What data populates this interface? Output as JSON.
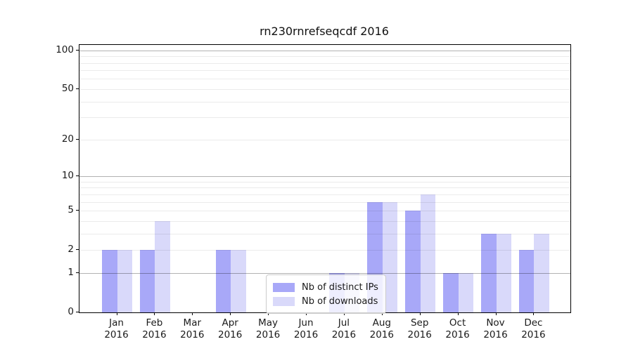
{
  "chart_data": {
    "type": "bar",
    "title": "rn230rnrefseqcdf 2016",
    "categories": [
      "Jan",
      "Feb",
      "Mar",
      "Apr",
      "May",
      "Jun",
      "Jul",
      "Aug",
      "Sep",
      "Oct",
      "Nov",
      "Dec"
    ],
    "x_tick_year": "2016",
    "series": [
      {
        "name": "Nb of distinct IPs",
        "color": "#a8a8f8",
        "values": [
          2,
          2,
          0,
          2,
          0,
          0,
          1,
          6,
          5,
          1,
          3,
          2
        ]
      },
      {
        "name": "Nb of downloads",
        "color": "#d9d9fa",
        "values": [
          2,
          4,
          0,
          2,
          0,
          0,
          1,
          6,
          7,
          1,
          3,
          3
        ]
      }
    ],
    "y_axis": {
      "scale": "log1p",
      "ylim": [
        0,
        110
      ],
      "tick_labels": [
        "0",
        "1",
        "2",
        "5",
        "10",
        "20",
        "50",
        "100"
      ],
      "tick_values": [
        0,
        1,
        2,
        5,
        10,
        20,
        50,
        100
      ],
      "grid_major_values": [
        1,
        10,
        100
      ],
      "grid_minor_values": [
        2,
        3,
        4,
        5,
        6,
        7,
        8,
        9,
        20,
        30,
        40,
        50,
        60,
        70,
        80,
        90
      ]
    },
    "xlabel": "",
    "ylabel": "",
    "grid": true,
    "legend_position": "lower center"
  }
}
